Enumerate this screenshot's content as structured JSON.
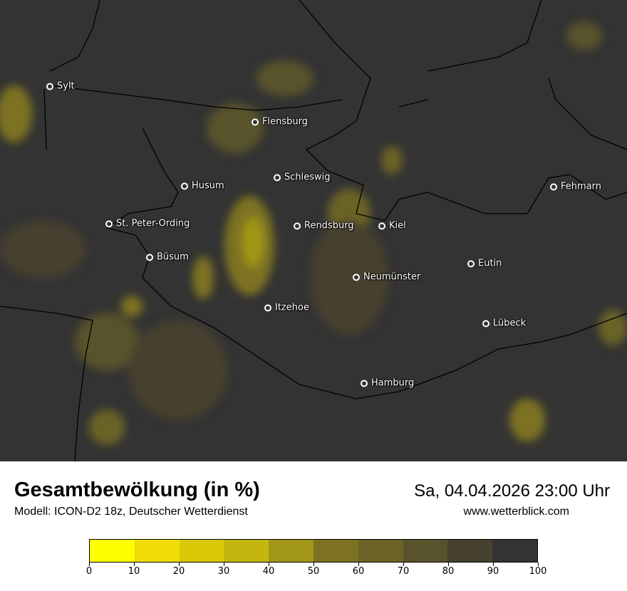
{
  "title": "Gesamtbewölkung (in %)",
  "subtitle": "Modell: ICON-D2 18z, Deutscher Wetterdienst",
  "datetime": "Sa, 04.04.2026 23:00 Uhr",
  "website": "www.wetterblick.com",
  "cities": [
    "Sylt",
    "Flensburg",
    "Schleswig",
    "Husum",
    "Fehmarn",
    "St. Peter-Ording",
    "Rendsburg",
    "Kiel",
    "Büsum",
    "Eutin",
    "Neumünster",
    "Itzehoe",
    "Lübeck",
    "Hamburg"
  ],
  "legend": {
    "ticks": [
      "0",
      "10",
      "20",
      "30",
      "40",
      "50",
      "60",
      "70",
      "80",
      "90",
      "100"
    ],
    "colors": [
      "#ffff00",
      "#eedc04",
      "#dac808",
      "#c4b60e",
      "#a29618",
      "#7d7222",
      "#6b6426",
      "#58532a",
      "#46412e",
      "#333333"
    ]
  }
}
